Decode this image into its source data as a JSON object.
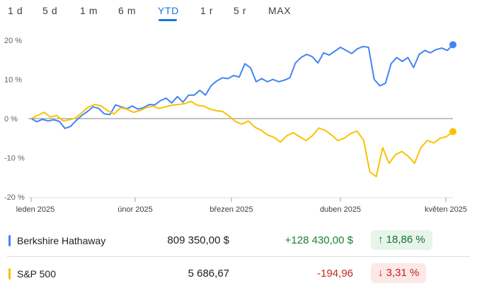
{
  "tabs": [
    {
      "label": "1 d",
      "active": false
    },
    {
      "label": "5 d",
      "active": false
    },
    {
      "label": "1 m",
      "active": false
    },
    {
      "label": "6 m",
      "active": false
    },
    {
      "label": "YTD",
      "active": true
    },
    {
      "label": "1 r",
      "active": false
    },
    {
      "label": "5 r",
      "active": false
    },
    {
      "label": "MAX",
      "active": false
    }
  ],
  "chart_data": {
    "type": "line",
    "title": "",
    "xlabel": "",
    "ylabel": "",
    "ylim": [
      -20,
      20
    ],
    "y_ticks": [
      "20 %",
      "10 %",
      "0 %",
      "-10 %",
      "-20 %"
    ],
    "x_ticks": [
      "leden 2025",
      "únor 2025",
      "březen 2025",
      "duben 2025",
      "květen 2025"
    ],
    "baseline": 0,
    "series": [
      {
        "name": "Berkshire Hathaway",
        "color": "#4285f4",
        "values": [
          0,
          -0.8,
          -0.2,
          -0.6,
          -0.3,
          -0.7,
          -2.5,
          -2.0,
          -0.5,
          0.8,
          1.8,
          3.0,
          2.6,
          1.2,
          1.0,
          3.5,
          3.0,
          2.5,
          3.2,
          2.4,
          2.8,
          3.6,
          3.5,
          4.6,
          5.2,
          4.0,
          5.6,
          4.2,
          6.0,
          6.0,
          7.2,
          6.0,
          8.4,
          9.6,
          10.4,
          10.2,
          11.0,
          10.6,
          14.0,
          13.0,
          9.4,
          10.2,
          9.4,
          10.0,
          9.4,
          9.8,
          10.4,
          14.2,
          15.6,
          16.4,
          15.8,
          14.2,
          16.8,
          16.2,
          17.2,
          18.2,
          17.4,
          16.6,
          17.8,
          18.4,
          18.2,
          10.0,
          8.4,
          9.0,
          14.0,
          15.6,
          14.6,
          15.6,
          13.0,
          16.4,
          17.4,
          16.8,
          17.6,
          18.0,
          17.4,
          18.86
        ]
      },
      {
        "name": "S&P 500",
        "color": "#f9c200",
        "values": [
          0,
          0.8,
          1.6,
          0.4,
          0.8,
          -0.6,
          -0.3,
          0.2,
          1.6,
          3.0,
          3.6,
          3.2,
          2.0,
          1.2,
          2.8,
          2.4,
          1.6,
          2.0,
          2.8,
          3.2,
          2.6,
          3.0,
          3.4,
          3.6,
          3.8,
          4.4,
          3.4,
          3.2,
          2.4,
          2.0,
          1.8,
          0.6,
          -0.8,
          -1.4,
          -0.6,
          -2.2,
          -3.0,
          -4.2,
          -4.8,
          -6.0,
          -4.4,
          -3.6,
          -4.6,
          -5.6,
          -4.4,
          -2.4,
          -3.0,
          -4.2,
          -5.6,
          -5.0,
          -3.8,
          -3.2,
          -5.4,
          -13.6,
          -14.8,
          -7.4,
          -11.4,
          -9.2,
          -8.4,
          -9.6,
          -11.4,
          -7.4,
          -5.6,
          -6.2,
          -5.0,
          -4.6,
          -3.31
        ]
      }
    ]
  },
  "legend": [
    {
      "name": "Berkshire Hathaway",
      "price": "809 350,00 $",
      "change": "+128 430,00 $",
      "pct": "↑ 18,86 %",
      "color": "#4285f4",
      "change_color": "#188038",
      "badge_bg": "#e6f4ea",
      "badge_color": "#137333"
    },
    {
      "name": "S&P 500",
      "price": "5 686,67",
      "change": "-194,96",
      "pct": "↓ 3,31 %",
      "color": "#f9c200",
      "change_color": "#c5221f",
      "badge_bg": "#fce8e6",
      "badge_color": "#c5221f"
    }
  ]
}
